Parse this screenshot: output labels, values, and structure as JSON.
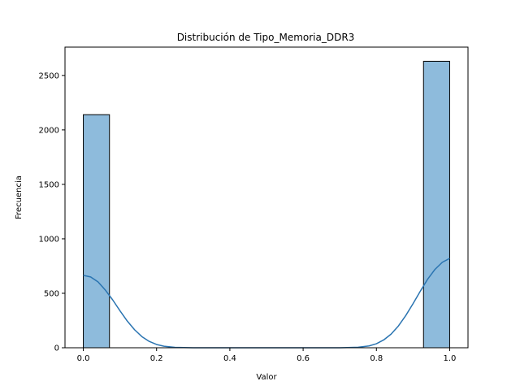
{
  "chart_data": {
    "type": "bar",
    "title": "Distribución de Tipo_Memoria_DDR3",
    "xlabel": "Valor",
    "ylabel": "Frecuencia",
    "xlim": [
      -0.05,
      1.05
    ],
    "ylim": [
      0,
      2760
    ],
    "xticks": [
      0.0,
      0.2,
      0.4,
      0.6,
      0.8,
      1.0
    ],
    "xtick_labels": [
      "0.0",
      "0.2",
      "0.4",
      "0.6",
      "0.8",
      "1.0"
    ],
    "yticks": [
      0,
      500,
      1000,
      1500,
      2000,
      2500
    ],
    "ytick_labels": [
      "0",
      "500",
      "1000",
      "1500",
      "2000",
      "2500"
    ],
    "bars": [
      {
        "x0": 0.0,
        "x1": 0.0714,
        "value": 2140
      },
      {
        "x0": 0.9286,
        "x1": 1.0,
        "value": 2630
      }
    ],
    "kde": {
      "x": [
        0.0,
        0.02,
        0.04,
        0.06,
        0.08,
        0.1,
        0.12,
        0.14,
        0.16,
        0.18,
        0.2,
        0.22,
        0.25,
        0.3,
        0.35,
        0.4,
        0.5,
        0.6,
        0.65,
        0.7,
        0.75,
        0.78,
        0.8,
        0.82,
        0.84,
        0.86,
        0.88,
        0.9,
        0.92,
        0.94,
        0.96,
        0.98,
        1.0
      ],
      "y": [
        665,
        650,
        605,
        530,
        440,
        340,
        245,
        165,
        102,
        58,
        30,
        14,
        4,
        0,
        0,
        0,
        0,
        0,
        0,
        0,
        5,
        17,
        37,
        72,
        125,
        200,
        295,
        405,
        520,
        630,
        720,
        785,
        820
      ]
    },
    "colors": {
      "bar_fill": "#8ebbdc",
      "bar_edge": "#000000",
      "kde_line": "#2a74b1"
    },
    "grid": false,
    "legend": "none"
  }
}
